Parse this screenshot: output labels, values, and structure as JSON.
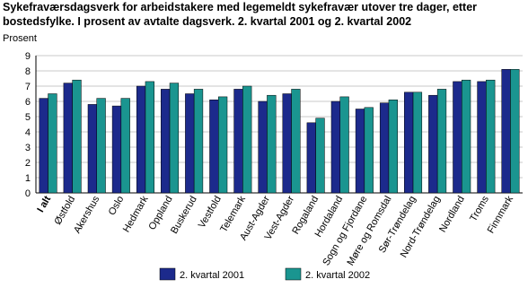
{
  "chart_data": {
    "type": "bar",
    "title": [
      "Sykefraværsdagsverk for arbeidstakere med legemeldt sykefravær utover tre dager, etter",
      "bostedsfylke. I prosent av avtalte dagsverk. 2. kvartal 2001 og 2. kvartal 2002"
    ],
    "y_label": "Prosent",
    "categories": [
      "I alt",
      "Østfold",
      "Akershus",
      "Oslo",
      "Hedmark",
      "Oppland",
      "Buskerud",
      "Vestfold",
      "Telemark",
      "Aust-Agder",
      "Vest-Agder",
      "Rogaland",
      "Hordaland",
      "Sogn og Fjordane",
      "Møre og Romsdal",
      "Sør-Trøndelag",
      "Nord-Trøndelag",
      "Nordland",
      "Troms",
      "Finnmark"
    ],
    "series": [
      {
        "name": "2. kvartal 2001",
        "color": "#1c2a8c",
        "values": [
          6.2,
          7.2,
          5.8,
          5.7,
          7.0,
          6.8,
          6.5,
          6.1,
          6.8,
          6.0,
          6.5,
          4.6,
          6.0,
          5.5,
          5.9,
          6.6,
          6.4,
          7.3,
          7.3,
          8.1
        ]
      },
      {
        "name": "2. kvartal 2002",
        "color": "#1a9590",
        "values": [
          6.5,
          7.4,
          6.2,
          6.2,
          7.3,
          7.2,
          6.8,
          6.3,
          7.0,
          6.4,
          6.8,
          4.9,
          6.3,
          5.6,
          6.1,
          6.6,
          6.8,
          7.4,
          7.4,
          8.1
        ]
      }
    ],
    "ylim": [
      0,
      9
    ],
    "yticks": [
      0,
      1,
      2,
      3,
      4,
      5,
      6,
      7,
      8,
      9
    ],
    "grid": true
  }
}
